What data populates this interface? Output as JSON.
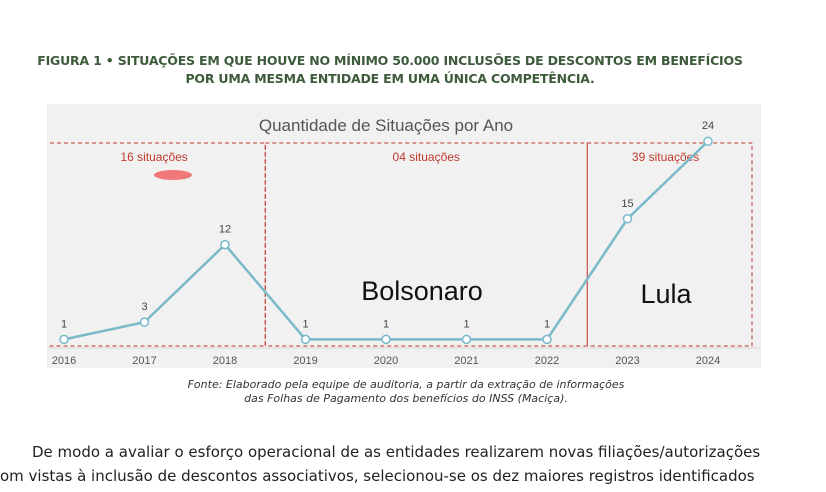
{
  "figure": {
    "title_line1": "FIGURA 1 • SITUAÇÕES EM QUE HOUVE NO MÍNIMO 50.000 INCLUSÕES DE DESCONTOS EM BENEFÍCIOS",
    "title_line2": "POR UMA MESMA ENTIDADE EM UMA ÚNICA COMPETÊNCIA."
  },
  "chart_data": {
    "type": "line",
    "title": "Quantidade de Situações por Ano",
    "xlabel": "",
    "ylabel": "",
    "categories": [
      "2016",
      "2017",
      "2018",
      "2019",
      "2020",
      "2021",
      "2022",
      "2023",
      "2024"
    ],
    "series": [
      {
        "values": [
          1,
          3,
          12,
          1,
          1,
          1,
          1,
          15,
          24
        ]
      }
    ],
    "ylim": [
      0,
      26
    ],
    "grid": false,
    "line_color": "#7ab9c9",
    "groups": [
      {
        "label": "16 situações",
        "start": "2016",
        "end": "2018"
      },
      {
        "label": "04 situações",
        "start": "2019",
        "end": "2022"
      },
      {
        "label": "39 situações",
        "start": "2023",
        "end": "2024"
      }
    ],
    "group_color": "#c0392b",
    "annotations": [
      {
        "text": "Bolsonaro",
        "group": 1
      },
      {
        "text": "Lula",
        "group": 2
      }
    ]
  },
  "source": {
    "line1": "Fonte: Elaborado pela equipe de auditoria, a partir da extração de informações",
    "line2": "das Folhas de Pagamento dos benefícios do INSS (Maciça)."
  },
  "body": {
    "line1": "De modo a avaliar o esforço operacional de as entidades realizarem novas filiações/autorizações",
    "line2": "om vistas à inclusão de descontos associativos, selecionou-se os dez maiores registros identificados"
  }
}
